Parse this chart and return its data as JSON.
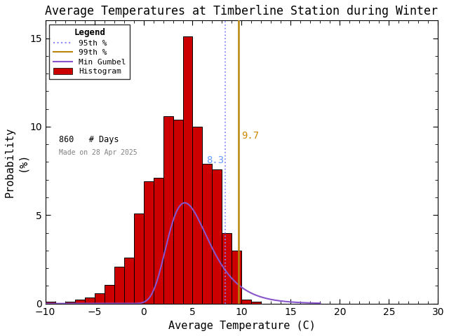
{
  "title": "Average Temperatures at Timberline Station during Winter",
  "xlabel": "Average Temperature (C)",
  "ylabel": "Probability\n(%)",
  "xlim": [
    -10,
    30
  ],
  "ylim": [
    0,
    16
  ],
  "xticks": [
    -10,
    -5,
    0,
    5,
    10,
    15,
    20,
    25,
    30
  ],
  "yticks": [
    0,
    5,
    10,
    15
  ],
  "bin_edges": [
    -10,
    -9,
    -8,
    -7,
    -6,
    -5,
    -4,
    -3,
    -2,
    -1,
    0,
    1,
    2,
    3,
    4,
    5,
    6,
    7,
    8,
    9,
    10,
    11,
    12,
    13,
    14,
    15
  ],
  "bin_heights": [
    0.12,
    0.0,
    0.12,
    0.23,
    0.35,
    0.58,
    1.05,
    2.1,
    2.6,
    5.1,
    6.9,
    7.1,
    10.6,
    10.4,
    15.1,
    10.0,
    7.9,
    7.6,
    4.0,
    3.0,
    0.23,
    0.12,
    0.0,
    0.0,
    0.0
  ],
  "hist_color": "#cc0000",
  "hist_edgecolor": "#000000",
  "gumbel_mu": 4.2,
  "gumbel_beta": 2.1,
  "gumbel_scale": 32.5,
  "percentile_95": 8.3,
  "percentile_99": 9.7,
  "n_days": 860,
  "made_on": "Made on 28 Apr 2025",
  "legend_title": "Legend",
  "p95_color": "#8888ff",
  "p99_color": "#b8860b",
  "gumbel_color": "#8855cc",
  "background_color": "#ffffff",
  "title_fontsize": 12,
  "axis_label_fontsize": 11,
  "tick_fontsize": 10,
  "p99_label_color": "#cc8800",
  "p95_label_color": "#6699ff"
}
